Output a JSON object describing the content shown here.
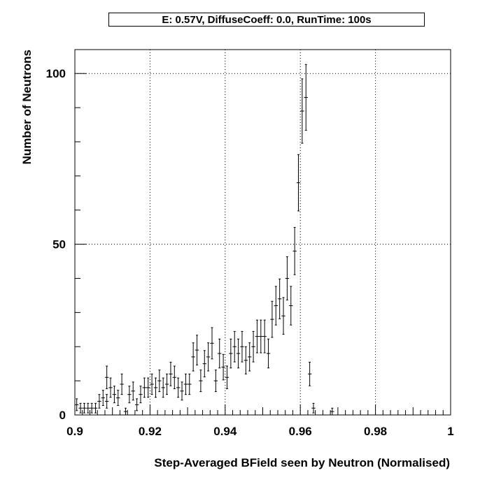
{
  "chart_data": {
    "type": "scatter",
    "title": "E: 0.57V, DiffuseCoeff: 0.0, RunTime: 100s",
    "xlabel": "Step-Averaged BField seen by Neutron (Normalised)",
    "ylabel": "Number of Neutrons",
    "xlim": [
      0.9,
      1.0
    ],
    "ylim": [
      0,
      107
    ],
    "xticks": [
      {
        "value": 0.9,
        "label": "0.9"
      },
      {
        "value": 0.92,
        "label": "0.92"
      },
      {
        "value": 0.94,
        "label": "0.94"
      },
      {
        "value": 0.96,
        "label": "0.96"
      },
      {
        "value": 0.98,
        "label": "0.98"
      },
      {
        "value": 1.0,
        "label": "1"
      }
    ],
    "yticks": [
      {
        "value": 0,
        "label": "0"
      },
      {
        "value": 50,
        "label": "50"
      },
      {
        "value": 100,
        "label": "100"
      }
    ],
    "grid": true,
    "error_bars": "sqrt(N)",
    "bin_half_width": 0.0005,
    "points": [
      {
        "x": 0.9005,
        "y": 3
      },
      {
        "x": 0.9015,
        "y": 2
      },
      {
        "x": 0.9025,
        "y": 2
      },
      {
        "x": 0.9035,
        "y": 2
      },
      {
        "x": 0.9045,
        "y": 2
      },
      {
        "x": 0.9055,
        "y": 2
      },
      {
        "x": 0.9065,
        "y": 4
      },
      {
        "x": 0.9075,
        "y": 5
      },
      {
        "x": 0.9085,
        "y": 4
      },
      {
        "x": 0.9085,
        "y": 11
      },
      {
        "x": 0.9095,
        "y": 8
      },
      {
        "x": 0.9105,
        "y": 6
      },
      {
        "x": 0.9115,
        "y": 5
      },
      {
        "x": 0.9125,
        "y": 9
      },
      {
        "x": 0.9135,
        "y": 1
      },
      {
        "x": 0.9145,
        "y": 6
      },
      {
        "x": 0.9155,
        "y": 7
      },
      {
        "x": 0.9165,
        "y": 3
      },
      {
        "x": 0.9175,
        "y": 6
      },
      {
        "x": 0.9185,
        "y": 8
      },
      {
        "x": 0.9195,
        "y": 8
      },
      {
        "x": 0.9205,
        "y": 9
      },
      {
        "x": 0.9215,
        "y": 8
      },
      {
        "x": 0.9225,
        "y": 10
      },
      {
        "x": 0.9235,
        "y": 8
      },
      {
        "x": 0.9245,
        "y": 9
      },
      {
        "x": 0.9255,
        "y": 12
      },
      {
        "x": 0.9265,
        "y": 11
      },
      {
        "x": 0.9275,
        "y": 8
      },
      {
        "x": 0.9285,
        "y": 7
      },
      {
        "x": 0.9295,
        "y": 9
      },
      {
        "x": 0.9305,
        "y": 9
      },
      {
        "x": 0.9315,
        "y": 17
      },
      {
        "x": 0.9325,
        "y": 19
      },
      {
        "x": 0.9335,
        "y": 10
      },
      {
        "x": 0.9345,
        "y": 15
      },
      {
        "x": 0.9355,
        "y": 17
      },
      {
        "x": 0.9365,
        "y": 21
      },
      {
        "x": 0.9375,
        "y": 10
      },
      {
        "x": 0.9385,
        "y": 18
      },
      {
        "x": 0.9395,
        "y": 14
      },
      {
        "x": 0.9405,
        "y": 11
      },
      {
        "x": 0.9415,
        "y": 18
      },
      {
        "x": 0.9425,
        "y": 20
      },
      {
        "x": 0.9435,
        "y": 18
      },
      {
        "x": 0.9445,
        "y": 20
      },
      {
        "x": 0.9455,
        "y": 16
      },
      {
        "x": 0.9465,
        "y": 17
      },
      {
        "x": 0.9475,
        "y": 20
      },
      {
        "x": 0.9485,
        "y": 23
      },
      {
        "x": 0.9495,
        "y": 23
      },
      {
        "x": 0.9505,
        "y": 23
      },
      {
        "x": 0.9515,
        "y": 18
      },
      {
        "x": 0.9525,
        "y": 28
      },
      {
        "x": 0.9535,
        "y": 32
      },
      {
        "x": 0.9545,
        "y": 34
      },
      {
        "x": 0.9555,
        "y": 29
      },
      {
        "x": 0.9565,
        "y": 40
      },
      {
        "x": 0.9575,
        "y": 32
      },
      {
        "x": 0.9585,
        "y": 48
      },
      {
        "x": 0.9595,
        "y": 68
      },
      {
        "x": 0.9605,
        "y": 89
      },
      {
        "x": 0.9615,
        "y": 93
      },
      {
        "x": 0.9625,
        "y": 12
      },
      {
        "x": 0.9635,
        "y": 2
      },
      {
        "x": 0.9685,
        "y": 1
      }
    ]
  }
}
